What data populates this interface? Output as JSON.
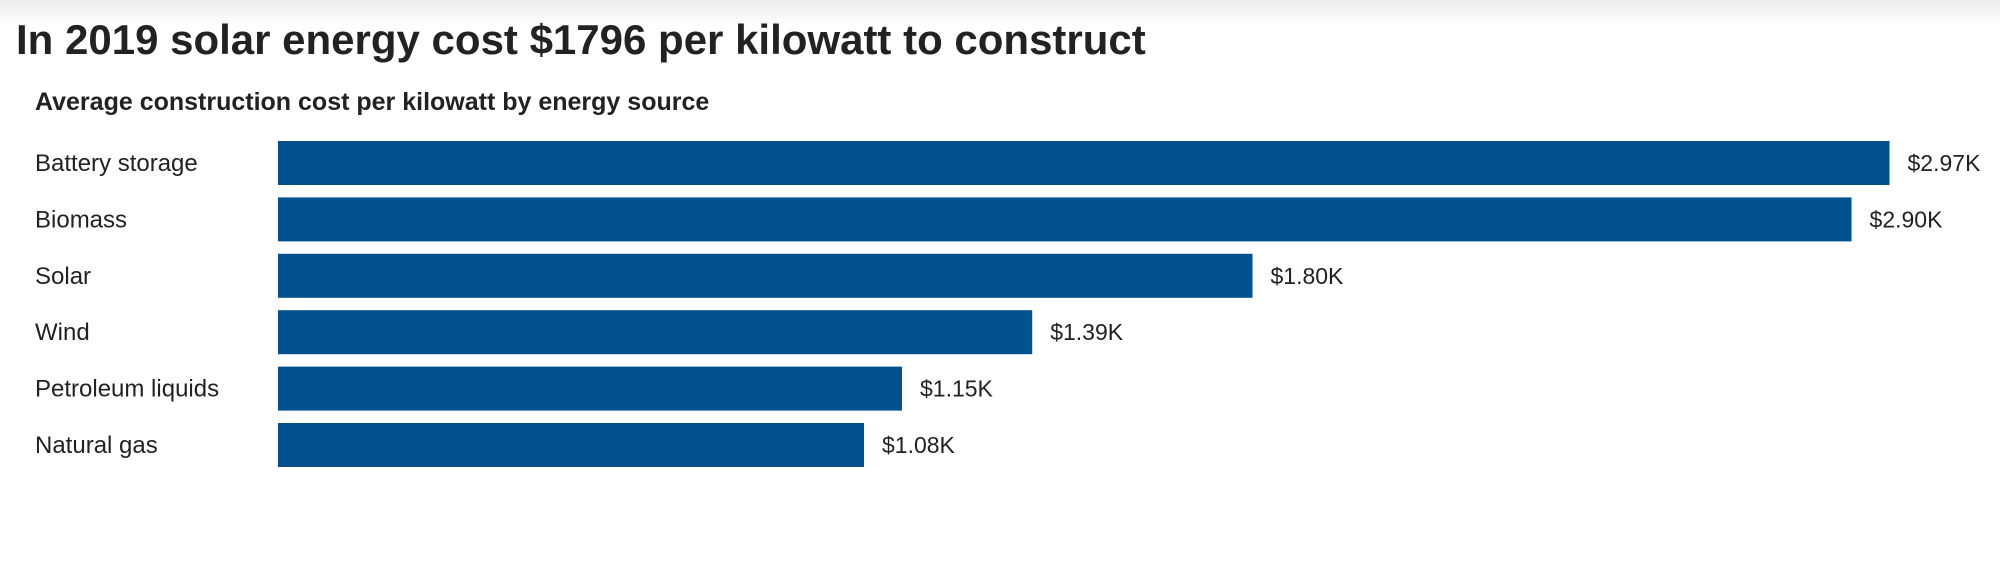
{
  "title": "In 2019 solar energy cost $1796 per kilowatt to construct",
  "chart_data": {
    "type": "bar",
    "orientation": "horizontal",
    "title": "Average construction cost per kilowatt by energy source",
    "categories": [
      "Battery storage",
      "Biomass",
      "Solar",
      "Wind",
      "Petroleum liquids",
      "Natural gas"
    ],
    "values": [
      2970,
      2900,
      1796,
      1390,
      1150,
      1080
    ],
    "value_labels": [
      "$2.97K",
      "$2.90K",
      "$1.80K",
      "$1.39K",
      "$1.15K",
      "$1.08K"
    ],
    "xlabel": "",
    "ylabel": "",
    "xlim": [
      0,
      3000
    ],
    "bar_color": "#03518f",
    "grid": false
  }
}
